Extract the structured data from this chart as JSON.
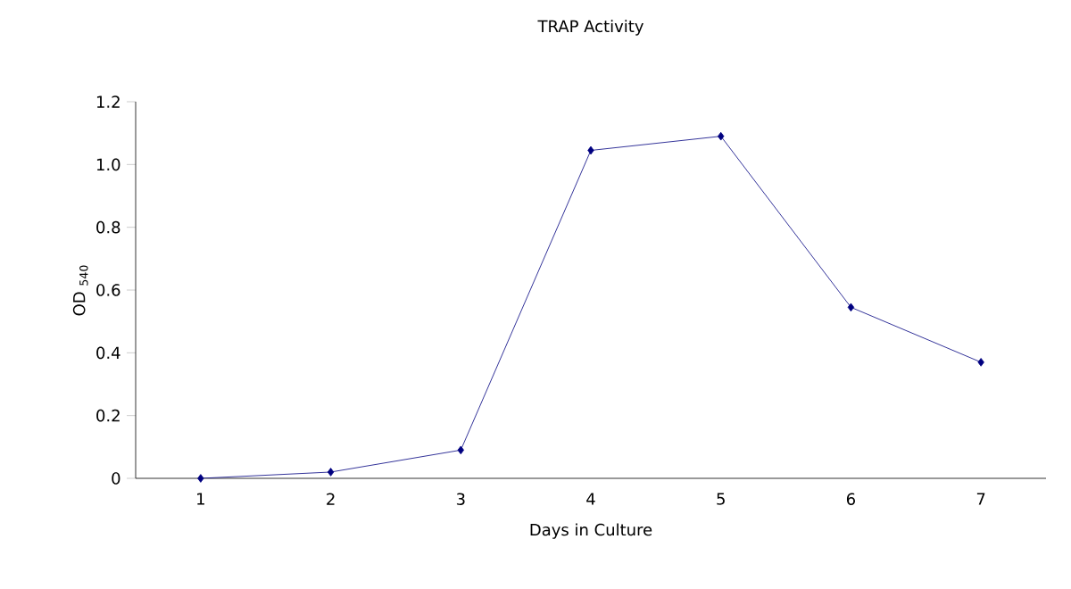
{
  "chart_data": {
    "type": "line",
    "title": "TRAP Activity",
    "xlabel": "Days in Culture",
    "ylabel": "OD $_{540}$",
    "categories": [
      "1",
      "2",
      "3",
      "4",
      "5",
      "6",
      "7"
    ],
    "series": [
      {
        "color": "#000080",
        "values": [
          0.0,
          0.02,
          0.09,
          1.045,
          1.09,
          0.545,
          0.37
        ]
      }
    ],
    "ylim": [
      0,
      1.2
    ],
    "yticks": [
      0,
      0.2,
      0.4,
      0.6,
      0.8,
      {
        "value": 1,
        "label": "1.0"
      },
      1.2
    ],
    "marker": "diamond",
    "line_style": "solid",
    "grid": false
  }
}
